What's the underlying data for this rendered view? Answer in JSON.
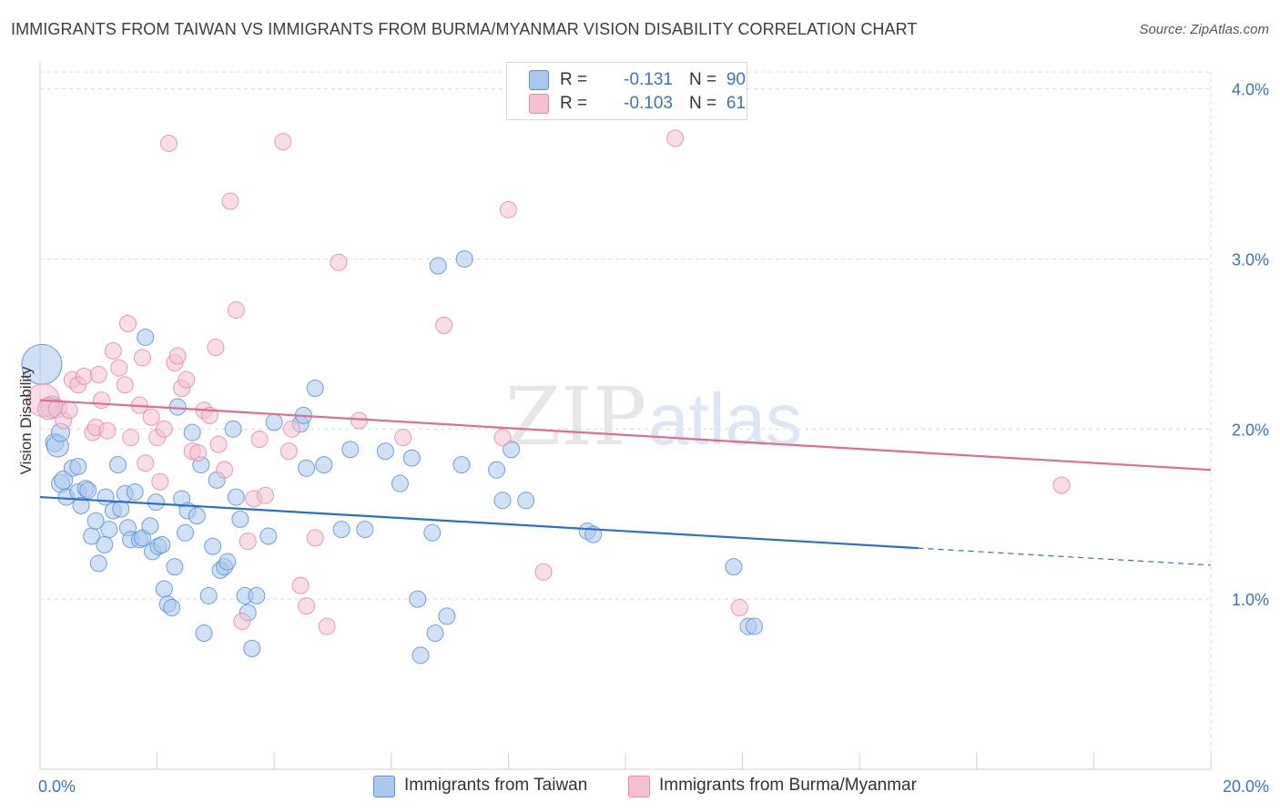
{
  "title": "IMMIGRANTS FROM TAIWAN VS IMMIGRANTS FROM BURMA/MYANMAR VISION DISABILITY CORRELATION CHART",
  "source": "Source: ZipAtlas.com",
  "watermark": {
    "zip": "ZIP",
    "atlas": "atlas"
  },
  "legend": {
    "r_label": "R =",
    "n_label": "N =",
    "rows": [
      {
        "r": "-0.131",
        "n": "90"
      },
      {
        "r": "-0.103",
        "n": "61"
      }
    ]
  },
  "chart_data": {
    "type": "scatter",
    "ylabel": "Vision Disability",
    "xlim": [
      0,
      20
    ],
    "ylim": [
      0,
      4.1
    ],
    "x_tick_labels": [
      {
        "value": 0,
        "label": "0.0%"
      },
      {
        "value": 20,
        "label": "20.0%"
      }
    ],
    "y_tick_labels": [
      {
        "value": 1,
        "label": "1.0%"
      },
      {
        "value": 2,
        "label": "2.0%"
      },
      {
        "value": 3,
        "label": "3.0%"
      },
      {
        "value": 4,
        "label": "4.0%"
      }
    ],
    "x_minor_ticks": [
      2,
      4,
      6,
      8,
      10,
      12,
      14,
      16,
      18,
      20
    ],
    "grid": true,
    "colors": {
      "taiwan_fill": "#a9c8f0",
      "taiwan_stroke": "#5b8fd6",
      "taiwan_line": "#2a6fd0",
      "burma_fill": "#f6bfd2",
      "burma_stroke": "#e58aa9",
      "burma_line": "#e06c94",
      "grid": "#dcdcdc",
      "tick_label": "#3a72c5"
    },
    "series": [
      {
        "name": "Immigrants from Taiwan",
        "trend": {
          "x0": 0,
          "y0": 1.6,
          "x1": 15,
          "y1": 1.3,
          "dash_to_x": 20,
          "dash_to_y": 1.2
        },
        "points": [
          [
            0.03,
            2.38,
            22
          ],
          [
            0.2,
            2.13,
            12
          ],
          [
            0.25,
            1.92,
            10
          ],
          [
            0.3,
            1.9,
            12
          ],
          [
            0.35,
            1.98,
            10
          ],
          [
            0.35,
            1.68,
            10
          ],
          [
            0.4,
            1.7,
            10
          ],
          [
            0.45,
            1.6,
            9
          ],
          [
            0.55,
            1.77,
            9
          ],
          [
            0.65,
            1.63,
            9
          ],
          [
            0.65,
            1.78,
            9
          ],
          [
            0.7,
            1.55,
            9
          ],
          [
            0.78,
            1.65,
            9
          ],
          [
            0.82,
            1.64,
            9
          ],
          [
            0.88,
            1.37,
            9
          ],
          [
            0.95,
            1.46,
            9
          ],
          [
            1.0,
            1.21,
            9
          ],
          [
            1.1,
            1.32,
            9
          ],
          [
            1.12,
            1.6,
            9
          ],
          [
            1.18,
            1.41,
            9
          ],
          [
            1.25,
            1.52,
            9
          ],
          [
            1.33,
            1.79,
            9
          ],
          [
            1.38,
            1.53,
            9
          ],
          [
            1.45,
            1.62,
            9
          ],
          [
            1.5,
            1.42,
            9
          ],
          [
            1.55,
            1.35,
            9
          ],
          [
            1.62,
            1.63,
            9
          ],
          [
            1.7,
            1.35,
            9
          ],
          [
            1.75,
            1.36,
            9
          ],
          [
            1.8,
            2.54,
            9
          ],
          [
            1.88,
            1.43,
            9
          ],
          [
            1.92,
            1.28,
            9
          ],
          [
            1.98,
            1.57,
            9
          ],
          [
            2.02,
            1.31,
            9
          ],
          [
            2.08,
            1.32,
            9
          ],
          [
            2.12,
            1.06,
            9
          ],
          [
            2.18,
            0.97,
            9
          ],
          [
            2.25,
            0.95,
            9
          ],
          [
            2.3,
            1.19,
            9
          ],
          [
            2.35,
            2.13,
            9
          ],
          [
            2.42,
            1.59,
            9
          ],
          [
            2.48,
            1.39,
            9
          ],
          [
            2.52,
            1.52,
            9
          ],
          [
            2.6,
            1.98,
            9
          ],
          [
            2.68,
            1.49,
            9
          ],
          [
            2.75,
            1.79,
            9
          ],
          [
            2.8,
            0.8,
            9
          ],
          [
            2.88,
            1.02,
            9
          ],
          [
            2.95,
            1.31,
            9
          ],
          [
            3.02,
            1.7,
            9
          ],
          [
            3.08,
            1.17,
            9
          ],
          [
            3.15,
            1.19,
            9
          ],
          [
            3.2,
            1.22,
            9
          ],
          [
            3.3,
            2.0,
            9
          ],
          [
            3.35,
            1.6,
            9
          ],
          [
            3.42,
            1.47,
            9
          ],
          [
            3.5,
            1.02,
            9
          ],
          [
            3.55,
            0.92,
            9
          ],
          [
            3.62,
            0.71,
            9
          ],
          [
            3.7,
            1.02,
            9
          ],
          [
            3.9,
            1.37,
            9
          ],
          [
            4.0,
            2.04,
            9
          ],
          [
            4.45,
            2.03,
            9
          ],
          [
            4.5,
            2.08,
            9
          ],
          [
            4.55,
            1.77,
            9
          ],
          [
            4.7,
            2.24,
            9
          ],
          [
            4.85,
            1.79,
            9
          ],
          [
            5.15,
            1.41,
            9
          ],
          [
            5.3,
            1.88,
            9
          ],
          [
            5.55,
            1.41,
            9
          ],
          [
            5.9,
            1.87,
            9
          ],
          [
            6.15,
            1.68,
            9
          ],
          [
            6.35,
            1.83,
            9
          ],
          [
            6.45,
            1.0,
            9
          ],
          [
            6.5,
            0.67,
            9
          ],
          [
            6.75,
            0.8,
            9
          ],
          [
            6.7,
            1.39,
            9
          ],
          [
            6.8,
            2.96,
            9
          ],
          [
            6.95,
            0.9,
            9
          ],
          [
            7.2,
            1.79,
            9
          ],
          [
            7.25,
            3.0,
            9
          ],
          [
            7.8,
            1.76,
            9
          ],
          [
            7.9,
            1.58,
            9
          ],
          [
            8.05,
            1.88,
            9
          ],
          [
            8.3,
            1.58,
            9
          ],
          [
            9.35,
            1.4,
            9
          ],
          [
            9.45,
            1.38,
            9
          ],
          [
            11.85,
            1.19,
            9
          ],
          [
            12.1,
            0.84,
            9
          ],
          [
            12.2,
            0.84,
            9
          ]
        ]
      },
      {
        "name": "Immigrants from Burma/Myanmar",
        "trend": {
          "x0": 0,
          "y0": 2.17,
          "x1": 20,
          "y1": 1.76
        },
        "points": [
          [
            0.05,
            2.17,
            18
          ],
          [
            0.15,
            2.12,
            12
          ],
          [
            0.3,
            2.12,
            10
          ],
          [
            0.4,
            2.05,
            9
          ],
          [
            0.5,
            2.11,
            9
          ],
          [
            0.55,
            2.29,
            9
          ],
          [
            0.65,
            2.26,
            9
          ],
          [
            0.75,
            2.31,
            9
          ],
          [
            0.9,
            1.98,
            9
          ],
          [
            0.95,
            2.01,
            9
          ],
          [
            1.0,
            2.32,
            9
          ],
          [
            1.05,
            2.17,
            9
          ],
          [
            1.15,
            1.99,
            9
          ],
          [
            1.25,
            2.46,
            9
          ],
          [
            1.35,
            2.36,
            9
          ],
          [
            1.45,
            2.26,
            9
          ],
          [
            1.5,
            2.62,
            9
          ],
          [
            1.55,
            1.95,
            9
          ],
          [
            1.7,
            2.14,
            9
          ],
          [
            1.75,
            2.42,
            9
          ],
          [
            1.8,
            1.8,
            9
          ],
          [
            1.9,
            2.07,
            9
          ],
          [
            2.0,
            1.95,
            9
          ],
          [
            2.05,
            1.69,
            9
          ],
          [
            2.12,
            2.0,
            9
          ],
          [
            2.2,
            3.68,
            9
          ],
          [
            2.3,
            2.39,
            9
          ],
          [
            2.35,
            2.43,
            9
          ],
          [
            2.42,
            2.24,
            9
          ],
          [
            2.5,
            2.29,
            9
          ],
          [
            2.6,
            1.87,
            9
          ],
          [
            2.7,
            1.86,
            9
          ],
          [
            2.8,
            2.11,
            9
          ],
          [
            2.9,
            2.08,
            9
          ],
          [
            3.0,
            2.48,
            9
          ],
          [
            3.05,
            1.91,
            9
          ],
          [
            3.15,
            1.76,
            9
          ],
          [
            3.25,
            3.34,
            9
          ],
          [
            3.35,
            2.7,
            9
          ],
          [
            3.45,
            0.87,
            9
          ],
          [
            3.55,
            1.34,
            9
          ],
          [
            3.65,
            1.59,
            9
          ],
          [
            3.75,
            1.94,
            9
          ],
          [
            3.85,
            1.61,
            9
          ],
          [
            4.15,
            3.69,
            9
          ],
          [
            4.25,
            1.87,
            9
          ],
          [
            4.3,
            2.0,
            9
          ],
          [
            4.45,
            1.08,
            9
          ],
          [
            4.55,
            0.96,
            9
          ],
          [
            4.7,
            1.36,
            9
          ],
          [
            4.9,
            0.84,
            9
          ],
          [
            5.1,
            2.98,
            9
          ],
          [
            5.45,
            2.05,
            9
          ],
          [
            6.2,
            1.95,
            9
          ],
          [
            6.9,
            2.61,
            9
          ],
          [
            7.9,
            1.95,
            9
          ],
          [
            8.0,
            3.29,
            9
          ],
          [
            8.6,
            1.16,
            9
          ],
          [
            10.85,
            3.71,
            9
          ],
          [
            11.95,
            0.95,
            9
          ],
          [
            17.45,
            1.67,
            9
          ]
        ]
      }
    ]
  }
}
